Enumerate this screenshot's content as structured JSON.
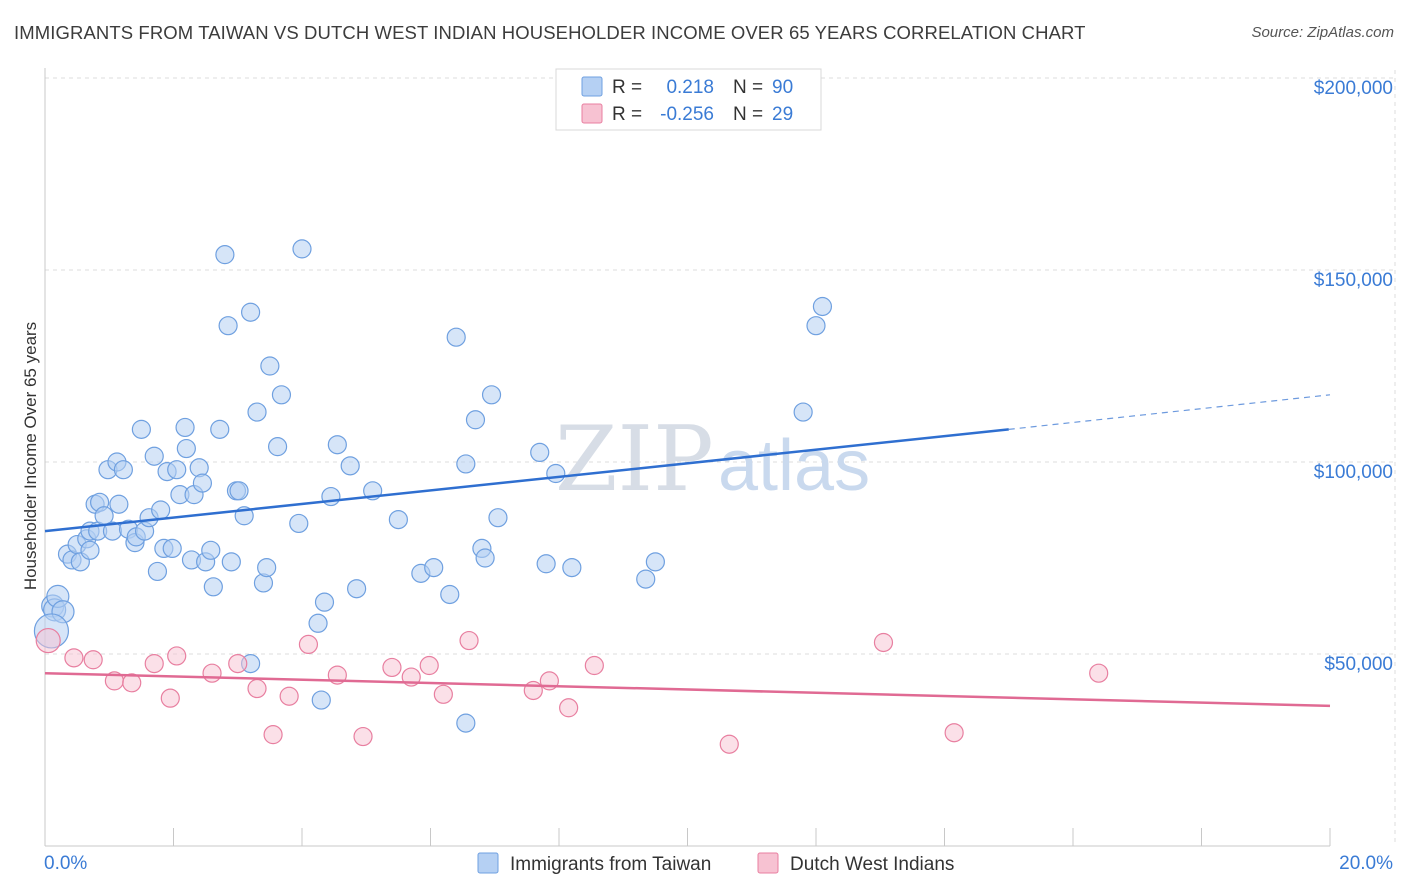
{
  "title": "IMMIGRANTS FROM TAIWAN VS DUTCH WEST INDIAN HOUSEHOLDER INCOME OVER 65 YEARS CORRELATION CHART",
  "source": "Source: ZipAtlas.com",
  "watermark": {
    "zip": "ZIP",
    "atlas": "atlas"
  },
  "colors": {
    "taiwan": "#6fa0e0",
    "taiwan_fill": "#b5d0f3",
    "dutch": "#e87fa0",
    "dutch_fill": "#f7c2d2",
    "blue_line": "#2f6fd0",
    "pink_line": "#e06a93",
    "axis_text": "#3a7bd5"
  },
  "stats": {
    "r_label": "R =",
    "n_label": "N =",
    "taiwan": {
      "r": "0.218",
      "n": "90"
    },
    "dutch": {
      "r": "-0.256",
      "n": "29"
    }
  },
  "chart_data": {
    "type": "scatter",
    "title": "IMMIGRANTS FROM TAIWAN VS DUTCH WEST INDIAN HOUSEHOLDER INCOME OVER 65 YEARS CORRELATION CHART",
    "xlabel": "",
    "ylabel": "Householder Income Over 65 years",
    "xlim": [
      0,
      20
    ],
    "ylim": [
      0,
      200000
    ],
    "x_tick_labels": [
      "0.0%",
      "20.0%"
    ],
    "y_ticks": [
      50000,
      100000,
      150000,
      200000
    ],
    "y_tick_labels": [
      "$50,000",
      "$100,000",
      "$150,000",
      "$200,000"
    ],
    "grid": true,
    "legend": [
      "Immigrants from Taiwan",
      "Dutch West Indians"
    ],
    "series": [
      {
        "name": "Immigrants from Taiwan",
        "trend": {
          "x0": 0,
          "y0": 82000,
          "x1": 15,
          "y1": 108500,
          "dashed_to_x": 20,
          "dashed_to_y": 117500
        },
        "points": [
          [
            0.12,
            62500
          ],
          [
            0.15,
            61500
          ],
          [
            0.2,
            65000
          ],
          [
            0.28,
            61000
          ],
          [
            0.35,
            76000
          ],
          [
            0.42,
            74500
          ],
          [
            0.5,
            78500
          ],
          [
            0.55,
            74000
          ],
          [
            0.65,
            80000
          ],
          [
            0.7,
            77000
          ],
          [
            0.7,
            82000
          ],
          [
            0.78,
            89000
          ],
          [
            0.82,
            82000
          ],
          [
            0.85,
            89500
          ],
          [
            0.92,
            86000
          ],
          [
            0.98,
            98000
          ],
          [
            1.05,
            82000
          ],
          [
            1.12,
            100000
          ],
          [
            1.15,
            89000
          ],
          [
            1.22,
            98000
          ],
          [
            1.3,
            82500
          ],
          [
            1.4,
            79000
          ],
          [
            1.42,
            80500
          ],
          [
            1.5,
            108500
          ],
          [
            1.55,
            82000
          ],
          [
            1.62,
            85500
          ],
          [
            1.7,
            101500
          ],
          [
            1.75,
            71500
          ],
          [
            1.8,
            87500
          ],
          [
            1.85,
            77500
          ],
          [
            1.9,
            97500
          ],
          [
            1.98,
            77500
          ],
          [
            2.05,
            98000
          ],
          [
            2.1,
            91500
          ],
          [
            2.18,
            109000
          ],
          [
            2.2,
            103500
          ],
          [
            2.28,
            74500
          ],
          [
            2.32,
            91500
          ],
          [
            2.4,
            98500
          ],
          [
            2.45,
            94500
          ],
          [
            2.5,
            74000
          ],
          [
            2.58,
            77000
          ],
          [
            2.62,
            67500
          ],
          [
            2.72,
            108500
          ],
          [
            2.8,
            154000
          ],
          [
            2.85,
            135500
          ],
          [
            2.9,
            74000
          ],
          [
            2.98,
            92500
          ],
          [
            3.02,
            92500
          ],
          [
            3.1,
            86000
          ],
          [
            3.2,
            139000
          ],
          [
            3.3,
            113000
          ],
          [
            3.4,
            68500
          ],
          [
            3.45,
            72500
          ],
          [
            3.5,
            125000
          ],
          [
            3.62,
            104000
          ],
          [
            3.68,
            117500
          ],
          [
            3.95,
            84000
          ],
          [
            4.0,
            155500
          ],
          [
            4.25,
            58000
          ],
          [
            4.35,
            63500
          ],
          [
            4.45,
            91000
          ],
          [
            4.55,
            104500
          ],
          [
            4.75,
            99000
          ],
          [
            4.85,
            67000
          ],
          [
            5.1,
            92500
          ],
          [
            5.5,
            85000
          ],
          [
            5.85,
            71000
          ],
          [
            6.05,
            72500
          ],
          [
            6.3,
            65500
          ],
          [
            6.4,
            132500
          ],
          [
            6.55,
            99500
          ],
          [
            6.7,
            111000
          ],
          [
            6.8,
            77500
          ],
          [
            6.85,
            75000
          ],
          [
            6.95,
            117500
          ],
          [
            7.05,
            85500
          ],
          [
            7.7,
            102500
          ],
          [
            7.8,
            73500
          ],
          [
            7.95,
            97000
          ],
          [
            8.2,
            72500
          ],
          [
            9.35,
            69500
          ],
          [
            9.5,
            74000
          ],
          [
            11.8,
            113000
          ],
          [
            12.0,
            135500
          ],
          [
            12.1,
            140500
          ],
          [
            3.2,
            47500
          ],
          [
            4.3,
            38000
          ],
          [
            6.55,
            32000
          ],
          [
            0.1,
            56000
          ]
        ]
      },
      {
        "name": "Dutch West Indians",
        "trend": {
          "x0": 0,
          "y0": 45000,
          "x1": 20,
          "y1": 36500
        },
        "points": [
          [
            0.05,
            53500
          ],
          [
            0.45,
            49000
          ],
          [
            0.75,
            48500
          ],
          [
            1.08,
            43000
          ],
          [
            1.35,
            42500
          ],
          [
            1.7,
            47500
          ],
          [
            1.95,
            38500
          ],
          [
            2.05,
            49500
          ],
          [
            2.6,
            45000
          ],
          [
            3.0,
            47500
          ],
          [
            3.3,
            41000
          ],
          [
            3.55,
            29000
          ],
          [
            3.8,
            39000
          ],
          [
            4.1,
            52500
          ],
          [
            4.55,
            44500
          ],
          [
            4.95,
            28500
          ],
          [
            5.4,
            46500
          ],
          [
            5.7,
            44000
          ],
          [
            5.98,
            47000
          ],
          [
            6.2,
            39500
          ],
          [
            6.6,
            53500
          ],
          [
            7.6,
            40500
          ],
          [
            7.85,
            43000
          ],
          [
            8.15,
            36000
          ],
          [
            8.55,
            47000
          ],
          [
            10.65,
            26500
          ],
          [
            13.05,
            53000
          ],
          [
            14.15,
            29500
          ],
          [
            16.4,
            45000
          ]
        ]
      }
    ]
  },
  "legend": {
    "taiwan_label": "Immigrants from Taiwan",
    "dutch_label": "Dutch West Indians"
  }
}
